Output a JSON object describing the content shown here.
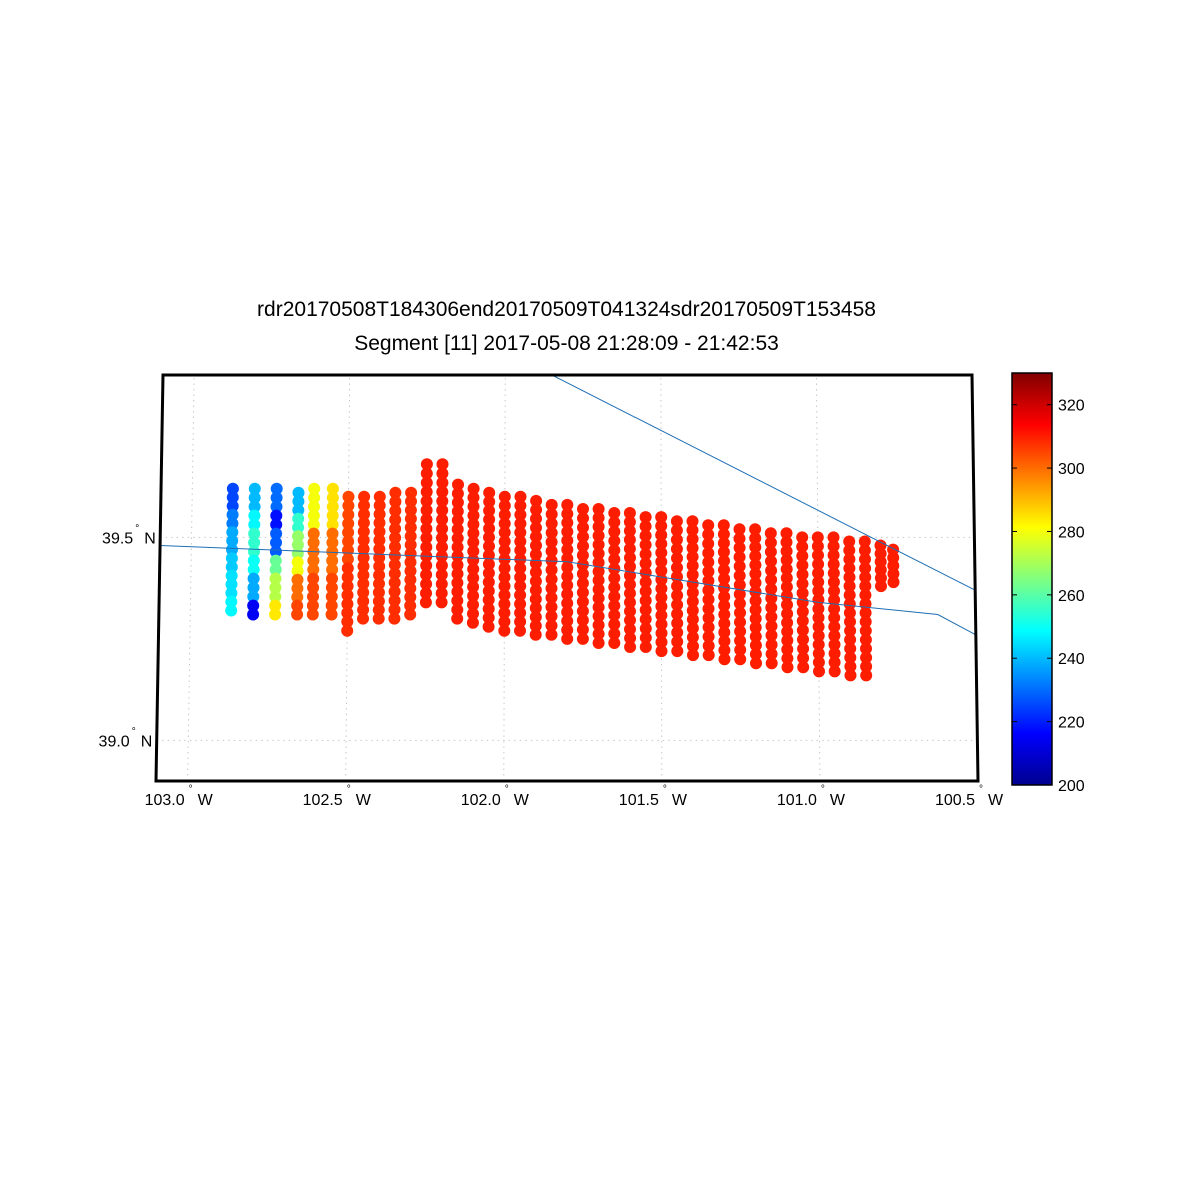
{
  "title_line1": "rdr20170508T184306end20170509T041324sdr20170509T153458",
  "title_line2": "Segment [11] 2017-05-08 21:28:09 - 21:42:53",
  "map": {
    "lon_range": [
      -103.1,
      -100.5
    ],
    "lat_range": [
      38.9,
      39.9
    ],
    "lon_ticks": [
      {
        "value": -103.0,
        "deg": "103.0",
        "hemi": "W"
      },
      {
        "value": -102.5,
        "deg": "102.5",
        "hemi": "W"
      },
      {
        "value": -102.0,
        "deg": "102.0",
        "hemi": "W"
      },
      {
        "value": -101.5,
        "deg": "101.5",
        "hemi": "W"
      },
      {
        "value": -101.0,
        "deg": "101.0",
        "hemi": "W"
      },
      {
        "value": -100.5,
        "deg": "100.5",
        "hemi": "W"
      }
    ],
    "lat_ticks": [
      {
        "value": 39.5,
        "deg": "39.5",
        "hemi": "N"
      },
      {
        "value": 39.0,
        "deg": "39.0",
        "hemi": "N"
      }
    ],
    "line_color": "#1f6fb4",
    "boundaries": [
      [
        [
          -101.85,
          39.9
        ],
        [
          -100.5,
          39.37
        ]
      ],
      [
        [
          -103.1,
          39.48
        ],
        [
          -101.8,
          39.44
        ],
        [
          -101.0,
          39.34
        ],
        [
          -100.62,
          39.31
        ],
        [
          -100.5,
          39.26
        ]
      ]
    ],
    "swath": {
      "marker": "filled circle",
      "background_value": 305,
      "columns": [
        {
          "lon": -102.87,
          "lat_top": 39.62,
          "lat_bottom": 39.32,
          "values": [
            225,
            232,
            238,
            242,
            245,
            248
          ]
        },
        {
          "lon": -102.8,
          "lat_top": 39.62,
          "lat_bottom": 39.31,
          "values": [
            240,
            248,
            255,
            250,
            238,
            215
          ]
        },
        {
          "lon": -102.73,
          "lat_top": 39.62,
          "lat_bottom": 39.31,
          "values": [
            230,
            218,
            228,
            262,
            272,
            284
          ]
        },
        {
          "lon": -102.66,
          "lat_top": 39.61,
          "lat_bottom": 39.31,
          "values": [
            240,
            255,
            268,
            280,
            300,
            305
          ]
        },
        {
          "lon": -102.61,
          "lat_top": 39.62,
          "lat_bottom": 39.31,
          "values": [
            280,
            300,
            305
          ]
        },
        {
          "lon": -102.55,
          "lat_top": 39.62,
          "lat_bottom": 39.31,
          "values": [
            285,
            300,
            305
          ]
        },
        {
          "lon": -102.5,
          "lat_top": 39.6,
          "lat_bottom": 39.27,
          "values": [
            305,
            308
          ]
        },
        {
          "lon": -102.45,
          "lat_top": 39.6,
          "lat_bottom": 39.3,
          "values": [
            308
          ]
        },
        {
          "lon": -102.4,
          "lat_top": 39.6,
          "lat_bottom": 39.3,
          "values": [
            308
          ]
        },
        {
          "lon": -102.35,
          "lat_top": 39.61,
          "lat_bottom": 39.3,
          "values": [
            308
          ]
        },
        {
          "lon": -102.3,
          "lat_top": 39.61,
          "lat_bottom": 39.31,
          "values": [
            308
          ]
        },
        {
          "lon": -102.25,
          "lat_top": 39.68,
          "lat_bottom": 39.34,
          "values": [
            310
          ]
        },
        {
          "lon": -102.2,
          "lat_top": 39.68,
          "lat_bottom": 39.34,
          "values": [
            310
          ]
        },
        {
          "lon": -102.15,
          "lat_top": 39.63,
          "lat_bottom": 39.3,
          "values": [
            310
          ]
        },
        {
          "lon": -102.1,
          "lat_top": 39.62,
          "lat_bottom": 39.29,
          "values": [
            310
          ]
        },
        {
          "lon": -102.05,
          "lat_top": 39.61,
          "lat_bottom": 39.28,
          "values": [
            310
          ]
        },
        {
          "lon": -102.0,
          "lat_top": 39.6,
          "lat_bottom": 39.27,
          "values": [
            310
          ]
        },
        {
          "lon": -101.95,
          "lat_top": 39.6,
          "lat_bottom": 39.27,
          "values": [
            310
          ]
        },
        {
          "lon": -101.9,
          "lat_top": 39.59,
          "lat_bottom": 39.26,
          "values": [
            310
          ]
        },
        {
          "lon": -101.85,
          "lat_top": 39.58,
          "lat_bottom": 39.26,
          "values": [
            310
          ]
        },
        {
          "lon": -101.8,
          "lat_top": 39.58,
          "lat_bottom": 39.25,
          "values": [
            310
          ]
        },
        {
          "lon": -101.75,
          "lat_top": 39.57,
          "lat_bottom": 39.25,
          "values": [
            310
          ]
        },
        {
          "lon": -101.7,
          "lat_top": 39.57,
          "lat_bottom": 39.24,
          "values": [
            310
          ]
        },
        {
          "lon": -101.65,
          "lat_top": 39.56,
          "lat_bottom": 39.24,
          "values": [
            310
          ]
        },
        {
          "lon": -101.6,
          "lat_top": 39.56,
          "lat_bottom": 39.23,
          "values": [
            310
          ]
        },
        {
          "lon": -101.55,
          "lat_top": 39.55,
          "lat_bottom": 39.23,
          "values": [
            310
          ]
        },
        {
          "lon": -101.5,
          "lat_top": 39.55,
          "lat_bottom": 39.22,
          "values": [
            310
          ]
        },
        {
          "lon": -101.45,
          "lat_top": 39.54,
          "lat_bottom": 39.22,
          "values": [
            310
          ]
        },
        {
          "lon": -101.4,
          "lat_top": 39.54,
          "lat_bottom": 39.21,
          "values": [
            310
          ]
        },
        {
          "lon": -101.35,
          "lat_top": 39.53,
          "lat_bottom": 39.21,
          "values": [
            310
          ]
        },
        {
          "lon": -101.3,
          "lat_top": 39.53,
          "lat_bottom": 39.2,
          "values": [
            310
          ]
        },
        {
          "lon": -101.25,
          "lat_top": 39.52,
          "lat_bottom": 39.2,
          "values": [
            310
          ]
        },
        {
          "lon": -101.2,
          "lat_top": 39.52,
          "lat_bottom": 39.19,
          "values": [
            310
          ]
        },
        {
          "lon": -101.15,
          "lat_top": 39.51,
          "lat_bottom": 39.19,
          "values": [
            310
          ]
        },
        {
          "lon": -101.1,
          "lat_top": 39.51,
          "lat_bottom": 39.18,
          "values": [
            310
          ]
        },
        {
          "lon": -101.05,
          "lat_top": 39.5,
          "lat_bottom": 39.18,
          "values": [
            310
          ]
        },
        {
          "lon": -101.0,
          "lat_top": 39.5,
          "lat_bottom": 39.17,
          "values": [
            310
          ]
        },
        {
          "lon": -100.95,
          "lat_top": 39.5,
          "lat_bottom": 39.17,
          "values": [
            310
          ]
        },
        {
          "lon": -100.9,
          "lat_top": 39.49,
          "lat_bottom": 39.16,
          "values": [
            310
          ]
        },
        {
          "lon": -100.85,
          "lat_top": 39.49,
          "lat_bottom": 39.16,
          "values": [
            310
          ]
        },
        {
          "lon": -100.8,
          "lat_top": 39.48,
          "lat_bottom": 39.38,
          "values": [
            310
          ]
        },
        {
          "lon": -100.76,
          "lat_top": 39.47,
          "lat_bottom": 39.39,
          "values": [
            310
          ]
        }
      ]
    }
  },
  "colorbar": {
    "colormap": "jet",
    "min": 200,
    "max": 330,
    "ticks": [
      "200",
      "220",
      "240",
      "260",
      "280",
      "300",
      "320"
    ],
    "tick_values": [
      200,
      220,
      240,
      260,
      280,
      300,
      320
    ]
  }
}
